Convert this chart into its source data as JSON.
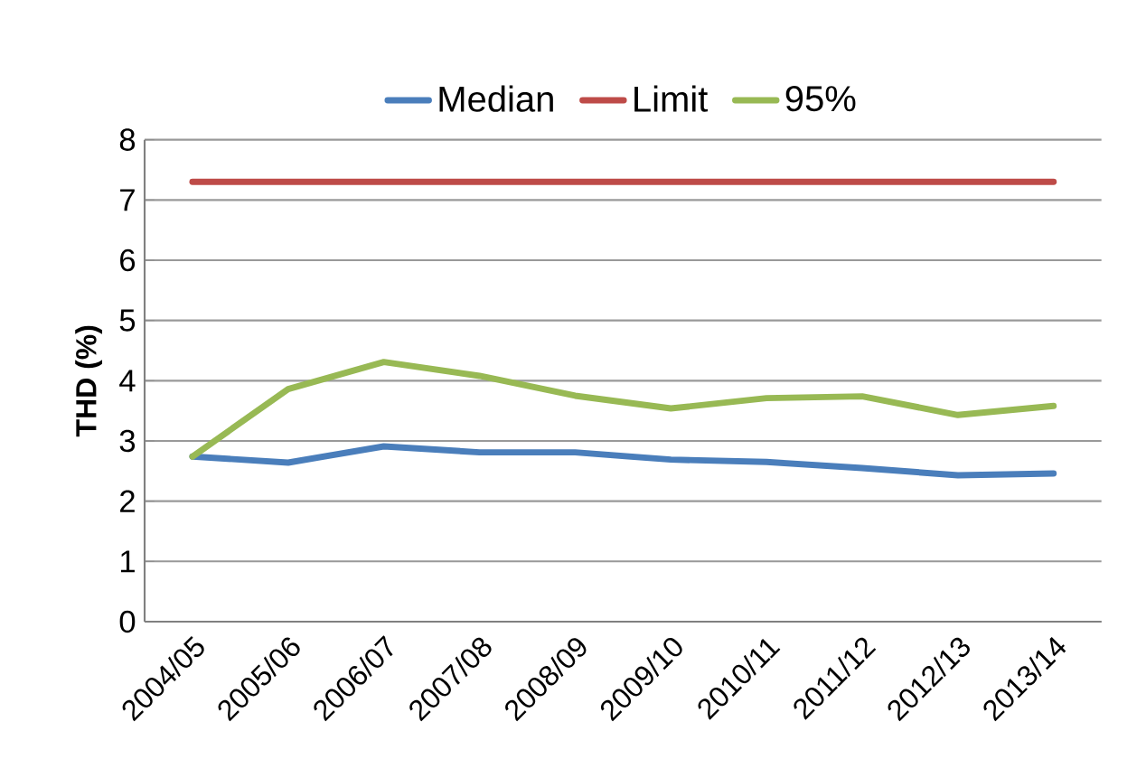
{
  "chart_data": {
    "type": "line",
    "ylabel": "THD (%)",
    "categories": [
      "2004/05",
      "2005/06",
      "2006/07",
      "2007/08",
      "2008/09",
      "2009/10",
      "2010/11",
      "2011/12",
      "2012/13",
      "2013/14"
    ],
    "series": [
      {
        "name": "Median",
        "color": "#4a7ebb",
        "values": [
          2.74,
          2.64,
          2.91,
          2.81,
          2.81,
          2.69,
          2.65,
          2.55,
          2.43,
          2.46
        ]
      },
      {
        "name": "Limit",
        "color": "#be4b48",
        "values": [
          7.3,
          7.3,
          7.3,
          7.3,
          7.3,
          7.3,
          7.3,
          7.3,
          7.3,
          7.3
        ]
      },
      {
        "name": "95%",
        "color": "#98b954",
        "values": [
          2.74,
          3.86,
          4.31,
          4.08,
          3.75,
          3.54,
          3.71,
          3.74,
          3.43,
          3.58
        ]
      }
    ],
    "ylim": [
      0,
      8
    ],
    "yticks": [
      0,
      1,
      2,
      3,
      4,
      5,
      6,
      7,
      8
    ],
    "grid": "y",
    "legend": "top",
    "marker": "none",
    "line_style": "solid"
  }
}
